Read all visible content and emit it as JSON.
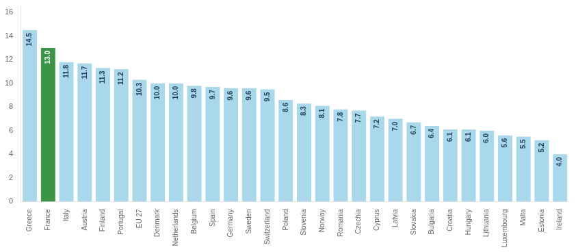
{
  "chart_data": {
    "type": "bar",
    "categories": [
      "Greece",
      "France",
      "Italy",
      "Austria",
      "Finland",
      "Portugal",
      "EU 27",
      "Denmark",
      "Netherlands",
      "Belgium",
      "Spain",
      "Germany",
      "Sweden",
      "Switzerland",
      "Poland",
      "Slovenia",
      "Norway",
      "Romania",
      "Czechia",
      "Cyprus",
      "Latvia",
      "Slovakia",
      "Bulgaria",
      "Croatia",
      "Hungary",
      "Lithuania",
      "Luxembourg",
      "Malta",
      "Estonia",
      "Ireland"
    ],
    "values": [
      14.5,
      13.0,
      11.8,
      11.7,
      11.3,
      11.2,
      10.3,
      10.0,
      10.0,
      9.8,
      9.7,
      9.6,
      9.6,
      9.5,
      8.6,
      8.3,
      8.1,
      7.8,
      7.7,
      7.2,
      7.0,
      6.7,
      6.4,
      6.1,
      6.1,
      6.0,
      5.6,
      5.5,
      5.2,
      4.0
    ],
    "value_labels": [
      "14.5",
      "13.0",
      "11.8",
      "11.7",
      "11.3",
      "11.2",
      "10.3",
      "10.0",
      "10.0",
      "9.8",
      "9.7",
      "9.6",
      "9.6",
      "9.5",
      "8.6",
      "8.3",
      "8.1",
      "7.8",
      "7.7",
      "7.2",
      "7.0",
      "6.7",
      "6.4",
      "6.1",
      "6.1",
      "6.0",
      "5.6",
      "5.5",
      "5.2",
      "4.0"
    ],
    "colors": [
      "#a8d8ea",
      "#3c9448",
      "#a8d8ea",
      "#a8d8ea",
      "#a8d8ea",
      "#a8d8ea",
      "#a8d8ea",
      "#a8d8ea",
      "#a8d8ea",
      "#a8d8ea",
      "#a8d8ea",
      "#a8d8ea",
      "#a8d8ea",
      "#a8d8ea",
      "#a8d8ea",
      "#a8d8ea",
      "#a8d8ea",
      "#a8d8ea",
      "#a8d8ea",
      "#a8d8ea",
      "#a8d8ea",
      "#a8d8ea",
      "#a8d8ea",
      "#a8d8ea",
      "#a8d8ea",
      "#a8d8ea",
      "#a8d8ea",
      "#a8d8ea",
      "#a8d8ea",
      "#a8d8ea"
    ],
    "ylim": [
      0,
      16.5
    ],
    "yticks": [
      0,
      2,
      4,
      6,
      8,
      10,
      12,
      14,
      16
    ],
    "grid": false,
    "data_labels": true
  }
}
